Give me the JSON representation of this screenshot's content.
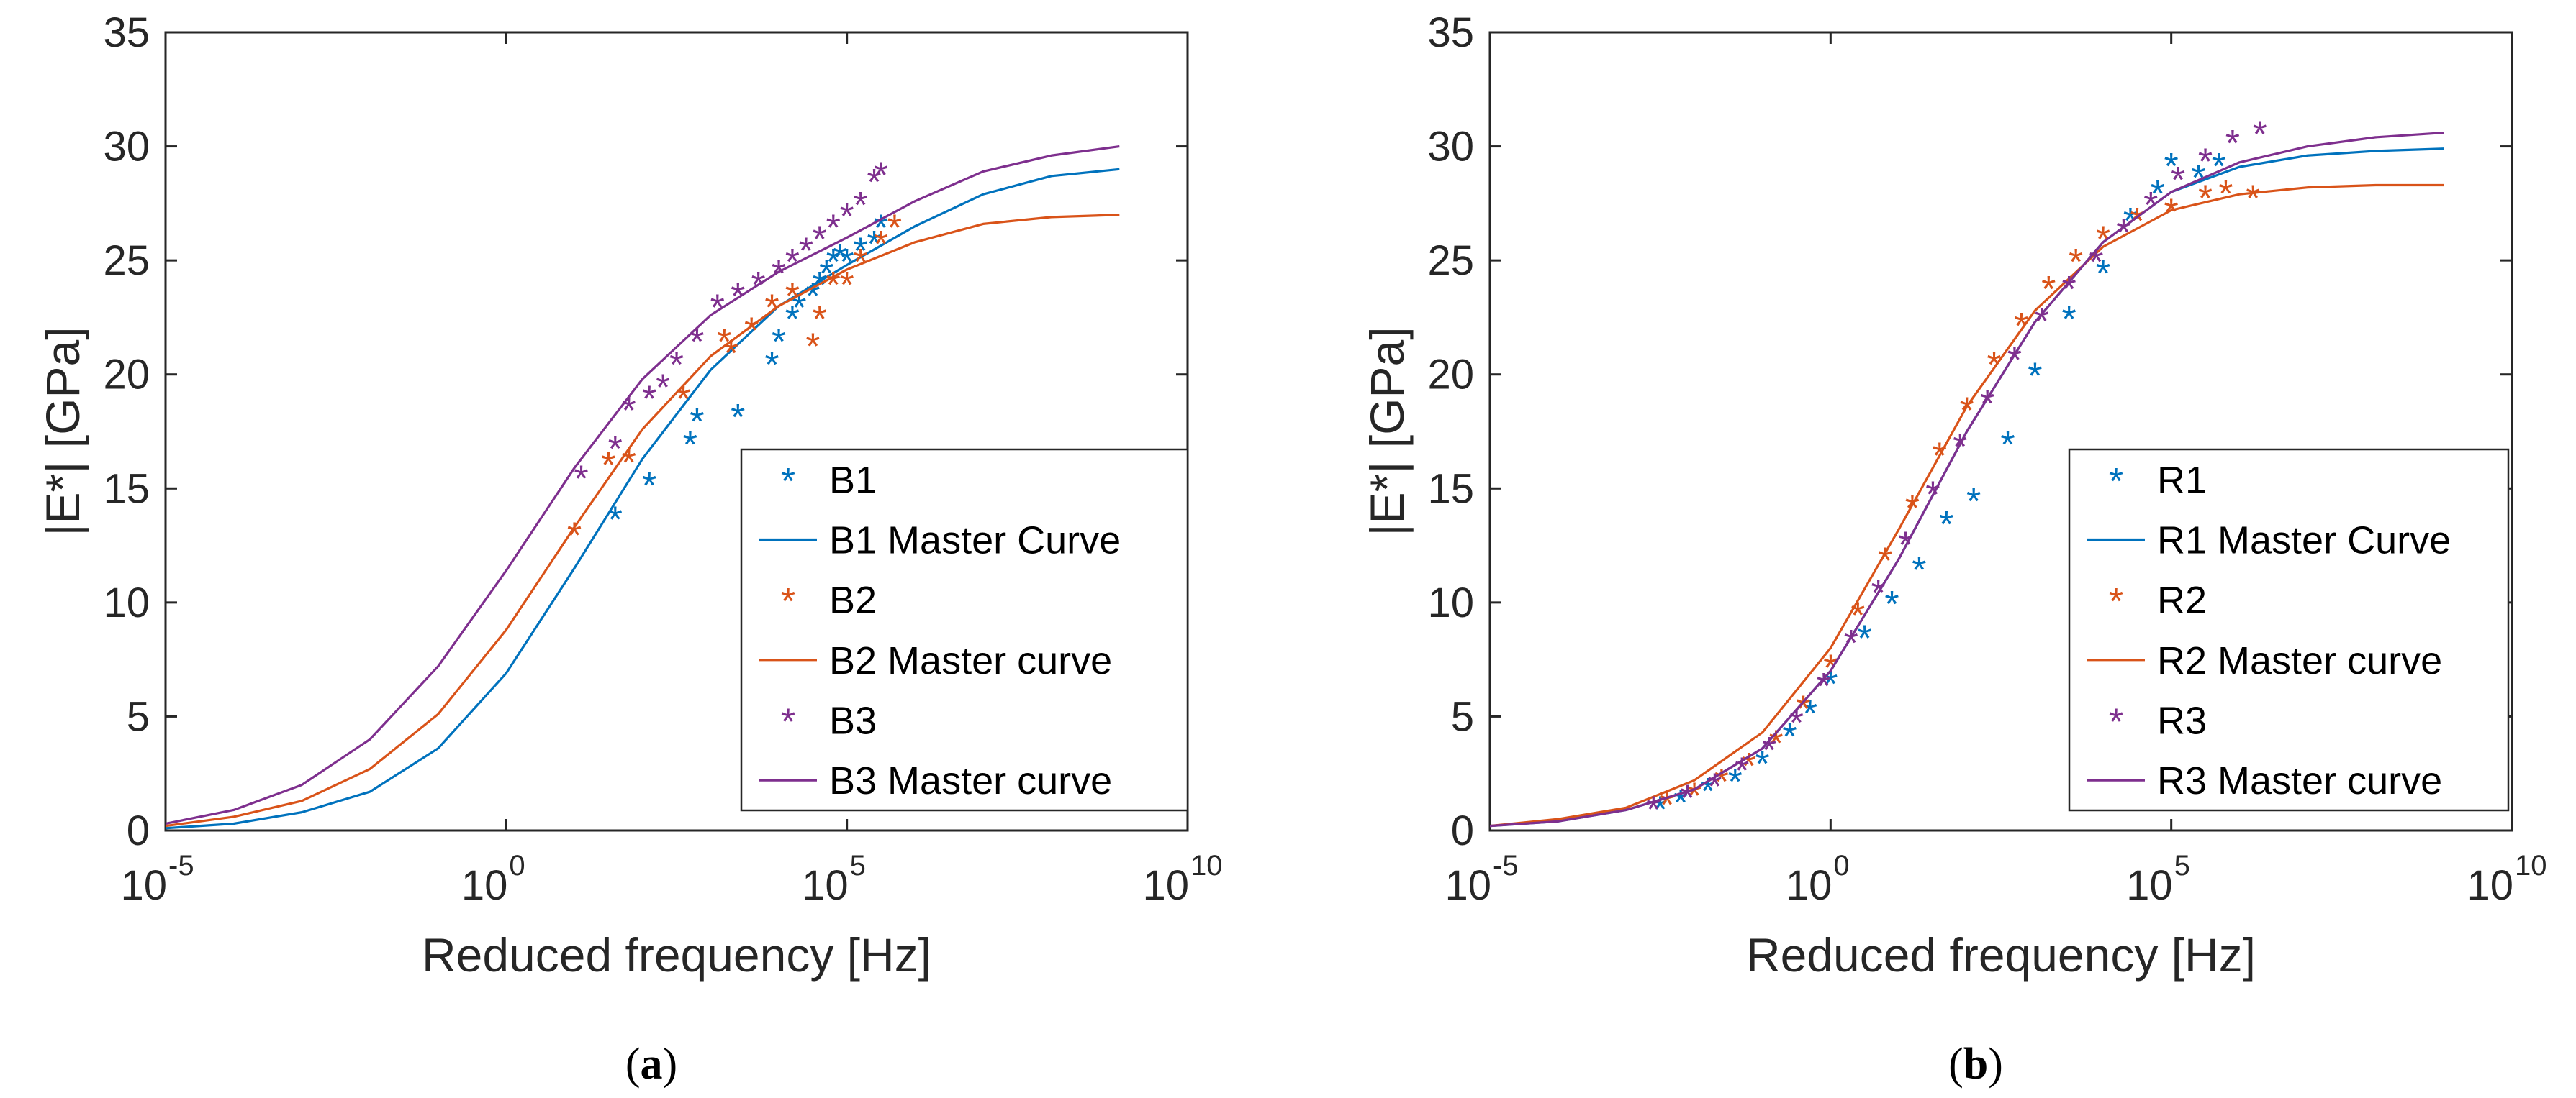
{
  "chart_data": [
    {
      "type": "scatter",
      "panel": "(a)",
      "caption_letter": "a",
      "xlabel": "Reduced frequency [Hz]",
      "ylabel": "|E*| [GPa]",
      "xscale": "log",
      "xlim": [
        -5,
        10
      ],
      "ylim": [
        0,
        35
      ],
      "xticks": [
        -5,
        0,
        5,
        10
      ],
      "xtick_base": "10",
      "xtick_exps": [
        "-5",
        "0",
        "5",
        "10"
      ],
      "yticks": [
        "0",
        "5",
        "10",
        "15",
        "20",
        "25",
        "30",
        "35"
      ],
      "legend_placement": "lower-right",
      "legend": [
        "B1",
        "B1 Master Curve",
        "B2",
        "B2 Master curve",
        "B3",
        "B3 Master curve"
      ],
      "series": [
        {
          "name": "B1",
          "kind": "points",
          "color": "#0072BD",
          "x": [
            1.6,
            2.1,
            2.7,
            2.8,
            3.4,
            3.9,
            4.0,
            4.2,
            4.3,
            4.5,
            4.6,
            4.7,
            4.8,
            4.9,
            5.0,
            5.2,
            5.4,
            5.5
          ],
          "y": [
            13.7,
            15.2,
            17.0,
            18.0,
            18.2,
            20.5,
            21.5,
            22.5,
            23.0,
            23.5,
            24.0,
            24.5,
            25.0,
            25.2,
            25.0,
            25.5,
            25.8,
            26.5
          ]
        },
        {
          "name": "B1 Master Curve",
          "kind": "line",
          "color": "#0072BD",
          "x": [
            -5,
            -4,
            -3,
            -2,
            -1,
            0,
            1,
            2,
            3,
            4,
            5,
            6,
            7,
            8,
            9
          ],
          "y": [
            0.1,
            0.3,
            0.8,
            1.7,
            3.6,
            6.9,
            11.5,
            16.3,
            20.2,
            23.0,
            24.8,
            26.5,
            27.9,
            28.7,
            29.0
          ]
        },
        {
          "name": "B2",
          "kind": "points",
          "color": "#D95319",
          "x": [
            1.0,
            1.5,
            1.8,
            2.6,
            3.2,
            3.3,
            3.6,
            3.9,
            4.2,
            4.5,
            4.6,
            4.8,
            5.0,
            5.2,
            5.5,
            5.7
          ],
          "y": [
            13.0,
            16.1,
            16.2,
            19.0,
            21.5,
            21.0,
            22.0,
            23.0,
            23.5,
            21.3,
            22.5,
            24.0,
            24.0,
            25.0,
            25.8,
            26.5
          ]
        },
        {
          "name": "B2 Master curve",
          "kind": "line",
          "color": "#D95319",
          "x": [
            -5,
            -4,
            -3,
            -2,
            -1,
            0,
            1,
            2,
            3,
            4,
            5,
            6,
            7,
            8,
            9
          ],
          "y": [
            0.2,
            0.6,
            1.3,
            2.7,
            5.1,
            8.8,
            13.3,
            17.6,
            20.8,
            23.0,
            24.6,
            25.8,
            26.6,
            26.9,
            27.0
          ]
        },
        {
          "name": "B3",
          "kind": "points",
          "color": "#7E2F8E",
          "x": [
            1.1,
            1.6,
            1.8,
            2.1,
            2.3,
            2.5,
            2.8,
            3.1,
            3.4,
            3.7,
            4.0,
            4.2,
            4.4,
            4.6,
            4.8,
            5.0,
            5.2,
            5.4,
            5.5
          ],
          "y": [
            15.5,
            16.8,
            18.5,
            19.0,
            19.5,
            20.5,
            21.5,
            23.0,
            23.5,
            24.0,
            24.5,
            25.0,
            25.5,
            26.0,
            26.5,
            27.0,
            27.5,
            28.5,
            28.8
          ]
        },
        {
          "name": "B3 Master curve",
          "kind": "line",
          "color": "#7E2F8E",
          "x": [
            -5,
            -4,
            -3,
            -2,
            -1,
            0,
            1,
            2,
            3,
            4,
            5,
            6,
            7,
            8,
            9
          ],
          "y": [
            0.3,
            0.9,
            2.0,
            4.0,
            7.2,
            11.4,
            15.9,
            19.8,
            22.6,
            24.5,
            26.0,
            27.6,
            28.9,
            29.6,
            30.0
          ]
        }
      ]
    },
    {
      "type": "scatter",
      "panel": "(b)",
      "caption_letter": "b",
      "xlabel": "Reduced frequency [Hz]",
      "ylabel": "|E*| [GPa]",
      "xscale": "log",
      "xlim": [
        -5,
        10
      ],
      "ylim": [
        0,
        35
      ],
      "xticks": [
        -5,
        0,
        5,
        10
      ],
      "xtick_base": "10",
      "xtick_exps": [
        "-5",
        "0",
        "5",
        "10"
      ],
      "yticks": [
        "0",
        "5",
        "10",
        "15",
        "20",
        "25",
        "30",
        "35"
      ],
      "legend_placement": "lower-right",
      "legend": [
        "R1",
        "R1 Master Curve",
        "R2",
        "R2 Master curve",
        "R3",
        "R3 Master curve"
      ],
      "series": [
        {
          "name": "R1",
          "kind": "points",
          "color": "#0072BD",
          "x": [
            -2.5,
            -2.2,
            -1.8,
            -1.4,
            -1.0,
            -0.6,
            -0.3,
            0.0,
            0.5,
            0.9,
            1.3,
            1.7,
            2.1,
            2.6,
            3.0,
            3.5,
            4.0,
            4.4,
            4.8,
            5.0,
            5.4,
            5.7
          ],
          "y": [
            1.0,
            1.3,
            1.8,
            2.2,
            3.0,
            4.2,
            5.2,
            6.5,
            8.5,
            10.0,
            11.5,
            13.5,
            14.5,
            17.0,
            20.0,
            22.5,
            24.5,
            26.8,
            28.0,
            29.2,
            28.7,
            29.2
          ]
        },
        {
          "name": "R1 Master Curve",
          "kind": "line",
          "color": "#0072BD",
          "x": [
            -5,
            -4,
            -3,
            -2,
            -1,
            0,
            1,
            2,
            3,
            4,
            5,
            6,
            7,
            8,
            9
          ],
          "y": [
            0.2,
            0.4,
            0.9,
            1.8,
            3.6,
            7.0,
            11.9,
            17.5,
            22.3,
            25.8,
            28.0,
            29.1,
            29.6,
            29.8,
            29.9
          ]
        },
        {
          "name": "R2",
          "kind": "points",
          "color": "#D95319",
          "x": [
            -2.4,
            -2.0,
            -1.6,
            -1.2,
            -0.8,
            -0.4,
            0.0,
            0.4,
            0.8,
            1.2,
            1.6,
            2.0,
            2.4,
            2.8,
            3.2,
            3.6,
            4.0,
            4.5,
            5.0,
            5.5,
            5.8,
            6.2
          ],
          "y": [
            1.2,
            1.6,
            2.2,
            2.9,
            3.9,
            5.4,
            7.2,
            9.5,
            11.9,
            14.2,
            16.5,
            18.5,
            20.5,
            22.2,
            23.8,
            25.0,
            26.0,
            26.8,
            27.2,
            27.8,
            28.0,
            27.8
          ]
        },
        {
          "name": "R2 Master curve",
          "kind": "line",
          "color": "#D95319",
          "x": [
            -5,
            -4,
            -3,
            -2,
            -1,
            0,
            1,
            2,
            3,
            4,
            5,
            6,
            7,
            8,
            9
          ],
          "y": [
            0.2,
            0.5,
            1.0,
            2.2,
            4.3,
            8.0,
            13.2,
            18.6,
            22.8,
            25.6,
            27.2,
            27.9,
            28.2,
            28.3,
            28.3
          ]
        },
        {
          "name": "R3",
          "kind": "points",
          "color": "#7E2F8E",
          "x": [
            -2.6,
            -2.1,
            -1.7,
            -1.3,
            -0.9,
            -0.5,
            -0.1,
            0.3,
            0.7,
            1.1,
            1.5,
            1.9,
            2.3,
            2.7,
            3.1,
            3.5,
            3.9,
            4.3,
            4.7,
            5.1,
            5.5,
            5.9,
            6.3
          ],
          "y": [
            1.0,
            1.5,
            2.0,
            2.7,
            3.6,
            4.8,
            6.4,
            8.3,
            10.5,
            12.6,
            14.8,
            16.9,
            18.8,
            20.7,
            22.4,
            23.8,
            25.0,
            26.3,
            27.5,
            28.6,
            29.4,
            30.2,
            30.6
          ]
        },
        {
          "name": "R3 Master curve",
          "kind": "line",
          "color": "#7E2F8E",
          "x": [
            -5,
            -4,
            -3,
            -2,
            -1,
            0,
            1,
            2,
            3,
            4,
            5,
            6,
            7,
            8,
            9
          ],
          "y": [
            0.2,
            0.4,
            0.9,
            1.8,
            3.6,
            7.0,
            11.9,
            17.5,
            22.3,
            25.8,
            28.0,
            29.3,
            30.0,
            30.4,
            30.6
          ]
        }
      ]
    }
  ]
}
